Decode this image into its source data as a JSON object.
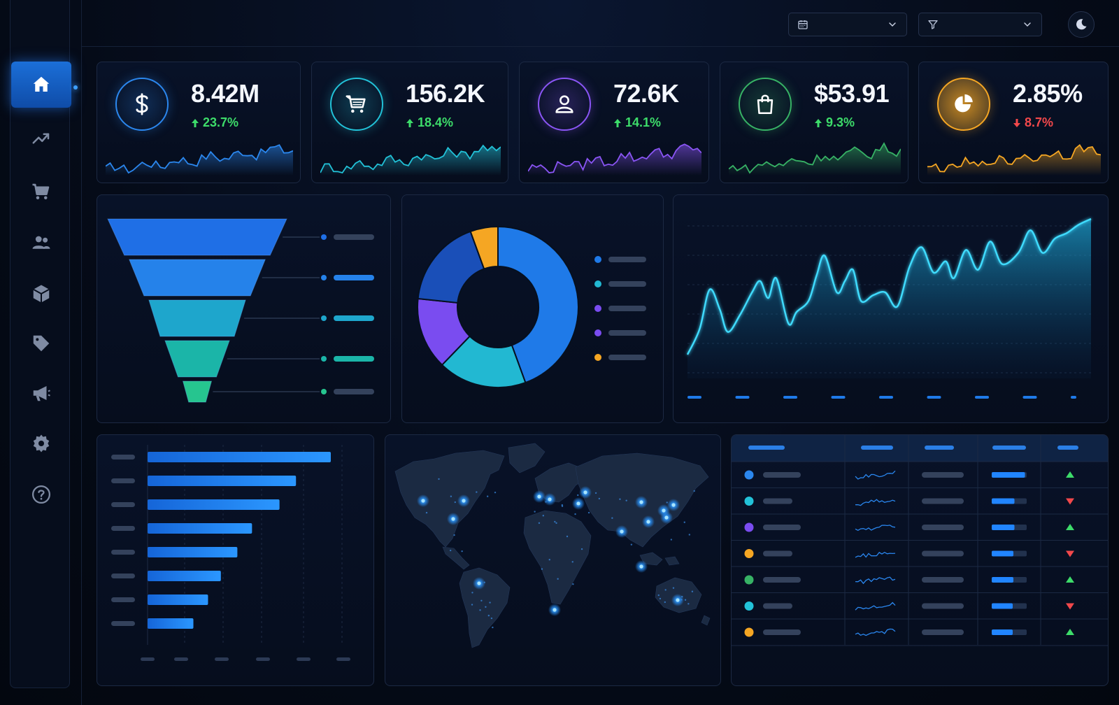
{
  "colors": {
    "accent": "#1f7ae8",
    "positive": "#3ddc6a",
    "negative": "#f2484b",
    "blue": "#2b87ee",
    "teal": "#22c2d8",
    "purple": "#7a4cf0",
    "green": "#37b265",
    "amber": "#f5a623"
  },
  "sidebar": {
    "items": [
      {
        "icon": "home-icon",
        "active": true
      },
      {
        "icon": "trending-up-icon",
        "active": false
      },
      {
        "icon": "cart-icon",
        "active": false
      },
      {
        "icon": "users-icon",
        "active": false
      },
      {
        "icon": "box-icon",
        "active": false
      },
      {
        "icon": "tag-icon",
        "active": false
      },
      {
        "icon": "megaphone-icon",
        "active": false
      },
      {
        "icon": "gear-icon",
        "active": false
      },
      {
        "icon": "help-icon",
        "active": false
      }
    ]
  },
  "topbar": {
    "date_icon": "calendar-icon",
    "filter_icon": "filter-icon",
    "theme_icon": "moon-icon"
  },
  "kpis": [
    {
      "value": "8.42M",
      "delta": "23.7%",
      "direction": "up",
      "icon": "dollar-icon",
      "color": "#2b87ee"
    },
    {
      "value": "156.2K",
      "delta": "18.4%",
      "direction": "up",
      "icon": "cart-icon",
      "color": "#22c2d8"
    },
    {
      "value": "72.6K",
      "delta": "14.1%",
      "direction": "up",
      "icon": "user-icon",
      "color": "#8a55f5"
    },
    {
      "value": "$53.91",
      "delta": "9.3%",
      "direction": "up",
      "icon": "shopping-bag-icon",
      "color": "#37b265"
    },
    {
      "value": "2.85%",
      "delta": "8.7%",
      "direction": "down",
      "icon": "pie-chart-icon",
      "color": "#f5a623"
    }
  ],
  "funnel": {
    "stages": [
      1.0,
      0.76,
      0.54,
      0.36,
      0.16
    ],
    "colors": [
      "#1f6fe6",
      "#2582ea",
      "#1ea6cc",
      "#1bb5a8",
      "#26c58f"
    ]
  },
  "donut": {
    "slices": [
      0.4,
      0.16,
      0.13,
      0.16,
      0.05
    ],
    "colors": [
      "#1f7ae8",
      "#22b8d2",
      "#7a4cf0",
      "#1a4fb8",
      "#f5a623"
    ],
    "legend_colors": [
      "#1f7ae8",
      "#22b8d2",
      "#7a4cf0",
      "#7a4cf0",
      "#f5a623"
    ]
  },
  "bar_chart": {
    "values": [
      100,
      81,
      72,
      57,
      49,
      40,
      33,
      25
    ]
  },
  "table": {
    "rows": [
      {
        "dot": "#2b87ee",
        "bar": 0.95,
        "trend": "up"
      },
      {
        "dot": "#22c2d8",
        "bar": 0.65,
        "trend": "down"
      },
      {
        "dot": "#7a4cf0",
        "bar": 0.65,
        "trend": "up"
      },
      {
        "dot": "#f5a623",
        "bar": 0.62,
        "trend": "down"
      },
      {
        "dot": "#37b265",
        "bar": 0.62,
        "trend": "up"
      },
      {
        "dot": "#22c2d8",
        "bar": 0.6,
        "trend": "down"
      },
      {
        "dot": "#f5a623",
        "bar": 0.6,
        "trend": "up"
      }
    ]
  }
}
